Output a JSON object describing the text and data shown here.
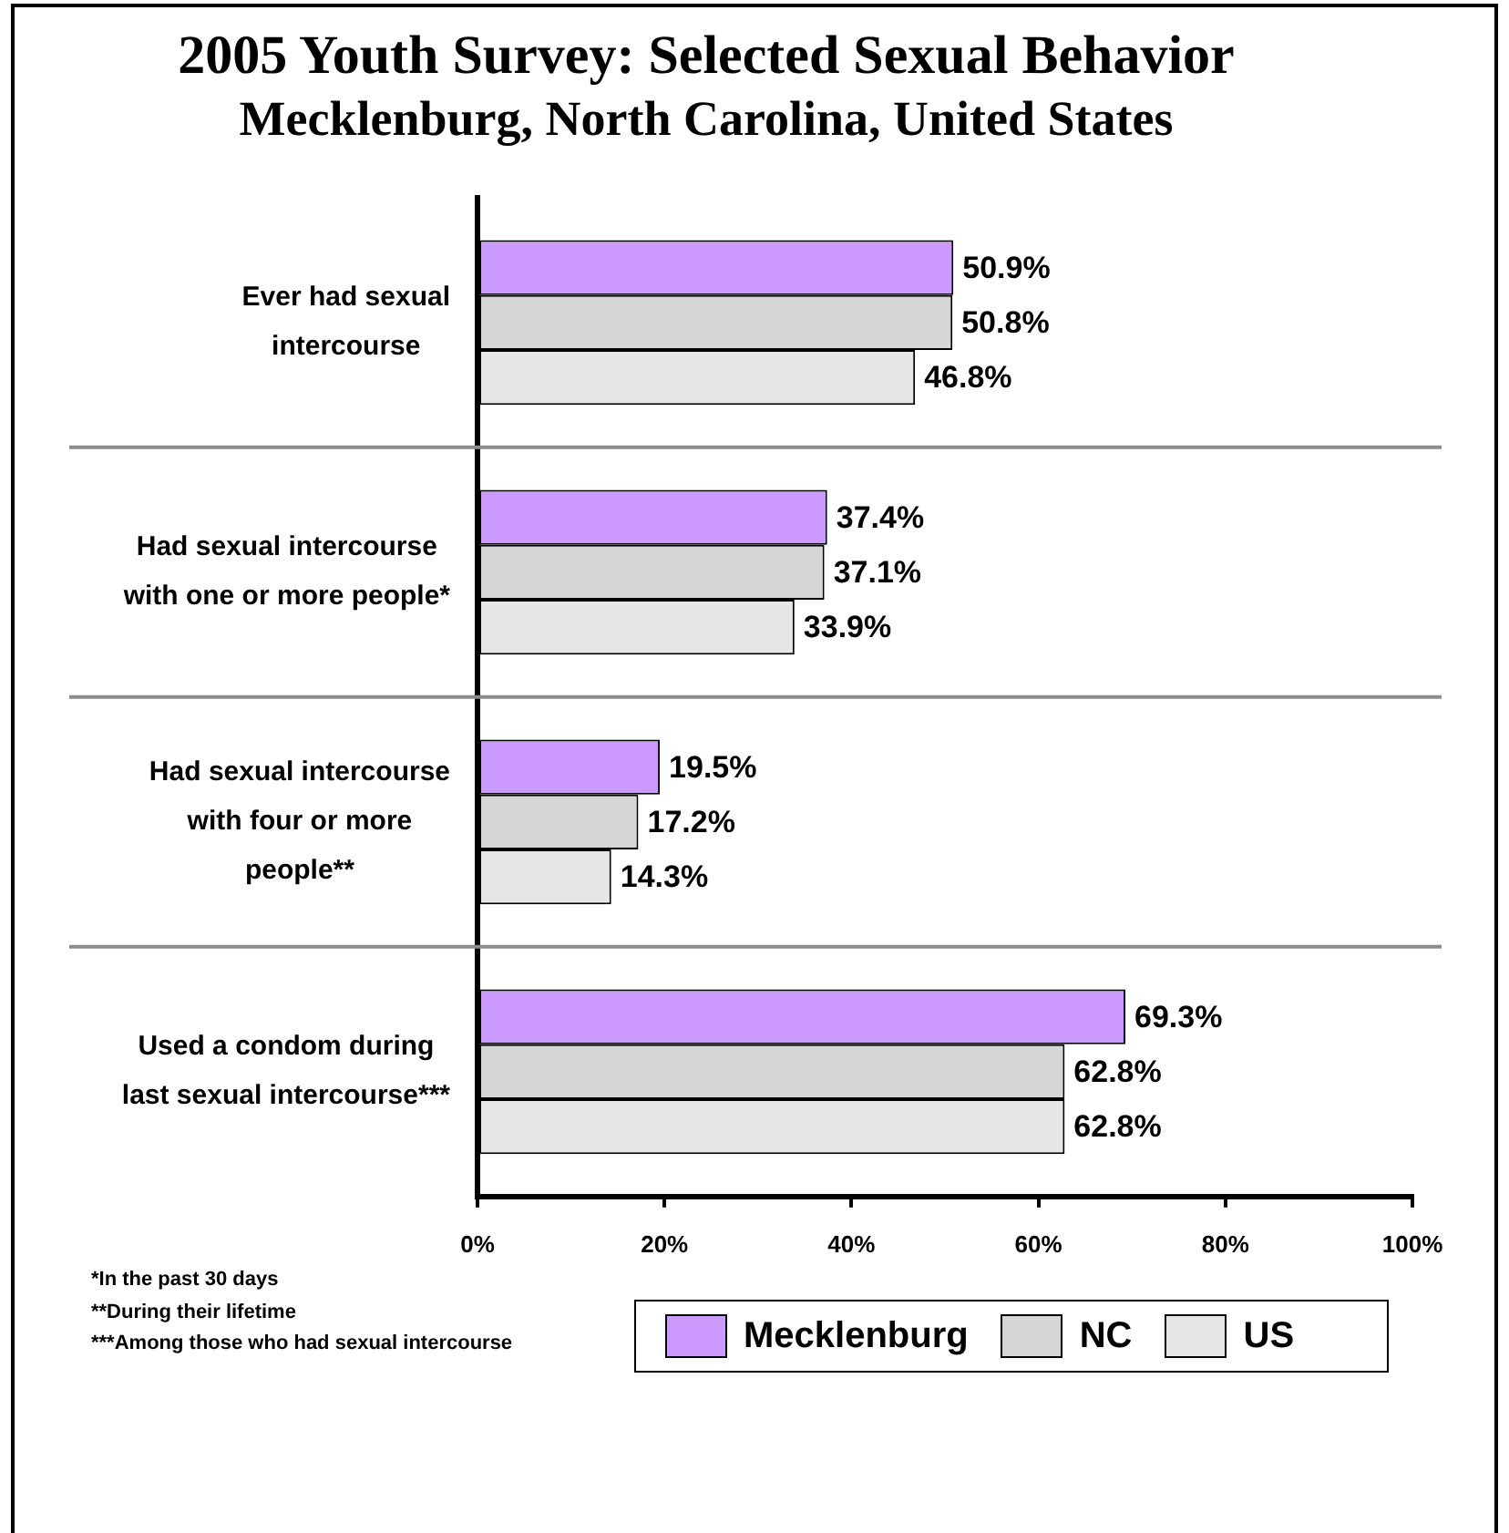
{
  "chart_data": {
    "type": "bar",
    "orientation": "horizontal",
    "title": "2005 Youth Survey: Selected Sexual Behavior",
    "subtitle": "Mecklenburg, North Carolina, United States",
    "categories": [
      "Ever had sexual intercourse",
      "Had sexual intercourse with one or more people*",
      "Had sexual intercourse with four or more people**",
      "Used a condom during last sexual intercourse***"
    ],
    "series": [
      {
        "name": "Mecklenburg",
        "color": "#cc99ff",
        "values": [
          50.9,
          37.4,
          19.5,
          69.3
        ],
        "value_labels": [
          "50.9%",
          "37.4%",
          "19.5%",
          "69.3%"
        ]
      },
      {
        "name": "NC",
        "color": "#d6d6d6",
        "values": [
          50.8,
          37.1,
          17.2,
          62.8
        ],
        "value_labels": [
          "50.8%",
          "37.1%",
          "17.2%",
          "62.8%"
        ]
      },
      {
        "name": "US",
        "color": "#e6e6e6",
        "values": [
          46.8,
          33.9,
          14.3,
          62.8
        ],
        "value_labels": [
          "46.8%",
          "33.9%",
          "14.3%",
          "62.8%"
        ]
      }
    ],
    "xlim": [
      0,
      100
    ],
    "xticks": [
      {
        "value": 0,
        "label": "0%"
      },
      {
        "value": 20,
        "label": "20%"
      },
      {
        "value": 40,
        "label": "40%"
      },
      {
        "value": 60,
        "label": "60%"
      },
      {
        "value": 80,
        "label": "80%"
      },
      {
        "value": 100,
        "label": "100%"
      }
    ],
    "grid": "y",
    "legend": "bottom",
    "annotations": [
      "*In the past 30 days",
      "**During their lifetime",
      "***Among those who had sexual intercourse"
    ]
  }
}
